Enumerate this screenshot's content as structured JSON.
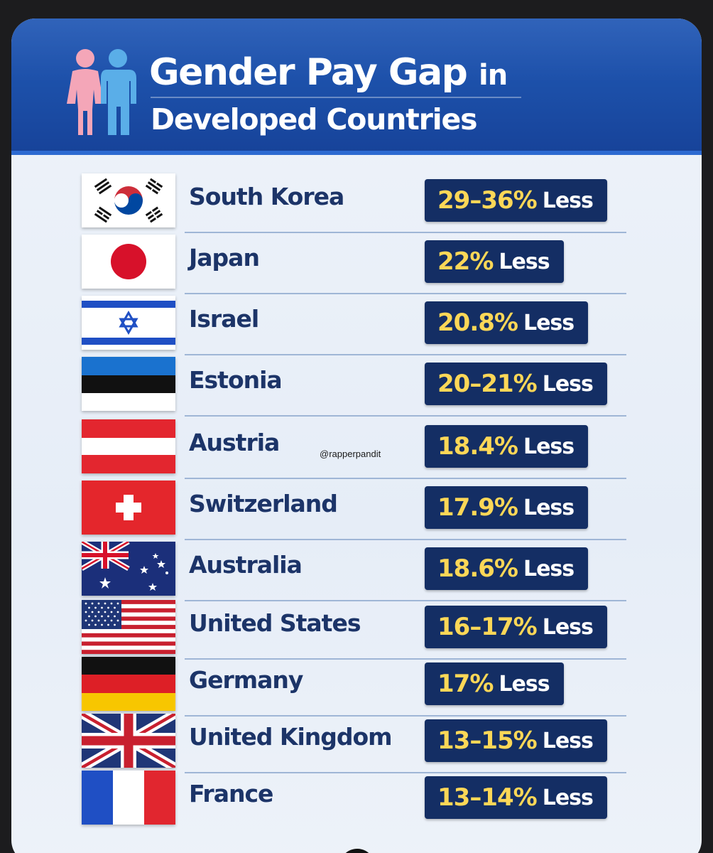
{
  "header": {
    "title_main": "Gender Pay Gap",
    "title_in": "in",
    "title_line2": "Developed Countries",
    "icon": "man-woman-icon"
  },
  "watermark": "@rapperpandit",
  "countries": [
    {
      "name": "South Korea",
      "value": "29–36%",
      "suffix": "Less",
      "flag": "south-korea-flag-icon"
    },
    {
      "name": "Japan",
      "value": "22%",
      "suffix": "Less",
      "flag": "japan-flag-icon"
    },
    {
      "name": "Israel",
      "value": "20.8%",
      "suffix": "Less",
      "flag": "israel-flag-icon"
    },
    {
      "name": "Estonia",
      "value": "20–21%",
      "suffix": "Less",
      "flag": "estonia-flag-icon"
    },
    {
      "name": "Austria",
      "value": "18.4%",
      "suffix": "Less",
      "flag": "austria-flag-icon"
    },
    {
      "name": "Switzerland",
      "value": "17.9%",
      "suffix": "Less",
      "flag": "switzerland-flag-icon"
    },
    {
      "name": "Australia",
      "value": "18.6%",
      "suffix": "Less",
      "flag": "australia-flag-icon"
    },
    {
      "name": "United States",
      "value": "16–17%",
      "suffix": "Less",
      "flag": "united-states-flag-icon"
    },
    {
      "name": "Germany",
      "value": "17%",
      "suffix": "Less",
      "flag": "germany-flag-icon"
    },
    {
      "name": "United Kingdom",
      "value": "13–15%",
      "suffix": "Less",
      "flag": "united-kingdom-flag-icon"
    },
    {
      "name": "France",
      "value": "13–14%",
      "suffix": "Less",
      "flag": "france-flag-icon"
    }
  ],
  "colors": {
    "header_blue": "#1c4fa8",
    "badge_navy": "#142e64",
    "value_yellow": "#fcd757",
    "country_text": "#1c3468",
    "woman_pink": "#f4a6b8",
    "man_blue": "#5aaee8"
  }
}
